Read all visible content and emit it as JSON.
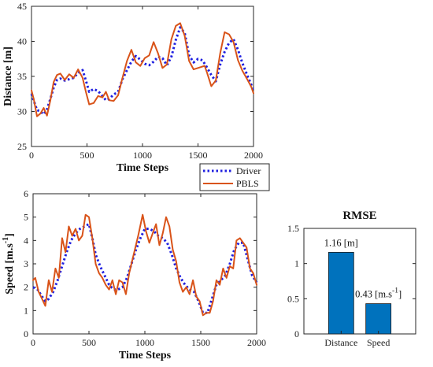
{
  "colors": {
    "driver": "#1f1fe0",
    "pbls": "#d95319",
    "bar": "#0072bd",
    "axis": "#262626"
  },
  "chart_data": [
    {
      "type": "line",
      "xlabel": "Time Steps",
      "ylabel": "Distance [m]",
      "xlim": [
        0,
        2000
      ],
      "ylim": [
        25,
        45
      ],
      "xticks": [
        "0",
        "500",
        "1000",
        "1500",
        "2000"
      ],
      "yticks": [
        "25",
        "30",
        "35",
        "40",
        "45"
      ],
      "series": [
        {
          "name": "Driver",
          "style": "dotted",
          "color": "#1f1fe0",
          "x": [
            0,
            50,
            80,
            110,
            140,
            170,
            200,
            230,
            260,
            300,
            340,
            380,
            420,
            460,
            490,
            520,
            560,
            600,
            640,
            670,
            700,
            740,
            780,
            820,
            860,
            900,
            940,
            980,
            1020,
            1060,
            1100,
            1140,
            1180,
            1220,
            1260,
            1300,
            1340,
            1380,
            1420,
            1460,
            1500,
            1540,
            1560,
            1580,
            1620,
            1660,
            1700,
            1740,
            1780,
            1820,
            1860,
            1900,
            1940,
            1980,
            2000
          ],
          "y": [
            32.5,
            30.2,
            30.0,
            29.6,
            30.3,
            31.8,
            33.4,
            34.5,
            34.7,
            34.4,
            34.6,
            34.8,
            35.5,
            35.9,
            34.4,
            32.8,
            33.2,
            32.9,
            32.2,
            31.6,
            31.8,
            32.4,
            32.8,
            34.6,
            35.9,
            37.1,
            37.9,
            37.4,
            36.8,
            36.6,
            37.1,
            37.8,
            37.6,
            36.6,
            37.8,
            40.2,
            42.0,
            41.2,
            38.0,
            37.0,
            37.5,
            37.3,
            36.8,
            36.3,
            35.2,
            34.3,
            36.7,
            38.5,
            39.8,
            40.3,
            38.8,
            36.9,
            35.3,
            33.8,
            32.9
          ]
        },
        {
          "name": "PBLS",
          "style": "solid",
          "color": "#d95319",
          "x": [
            0,
            20,
            50,
            80,
            110,
            140,
            170,
            200,
            230,
            260,
            300,
            340,
            380,
            420,
            460,
            490,
            520,
            560,
            600,
            640,
            670,
            700,
            740,
            780,
            820,
            860,
            900,
            940,
            980,
            1020,
            1060,
            1100,
            1140,
            1180,
            1220,
            1260,
            1300,
            1340,
            1380,
            1420,
            1460,
            1500,
            1540,
            1560,
            1580,
            1620,
            1660,
            1700,
            1740,
            1780,
            1820,
            1860,
            1900,
            1940,
            1980,
            2000
          ],
          "y": [
            33.0,
            31.8,
            29.3,
            29.7,
            30.5,
            29.4,
            31.6,
            34.2,
            35.2,
            35.4,
            34.5,
            35.3,
            34.8,
            36.0,
            34.8,
            32.8,
            31.0,
            31.2,
            32.2,
            32.0,
            32.8,
            31.6,
            31.5,
            32.3,
            34.8,
            37.2,
            38.8,
            37.0,
            36.5,
            37.6,
            38.0,
            39.9,
            38.3,
            36.2,
            36.7,
            40.3,
            42.2,
            42.6,
            40.8,
            37.2,
            36.0,
            36.2,
            36.4,
            36.5,
            35.6,
            33.6,
            34.4,
            38.3,
            41.3,
            41.0,
            39.9,
            37.3,
            35.8,
            34.7,
            33.5,
            32.6
          ]
        }
      ],
      "legend": {
        "position": "below-right",
        "entries": [
          "Driver",
          "PBLS"
        ]
      }
    },
    {
      "type": "line",
      "xlabel": "Time Steps",
      "ylabel": "Speed [m.s",
      "ylabel_sup": "-1",
      "ylabel_close": "]",
      "xlim": [
        0,
        2000
      ],
      "ylim": [
        0,
        6
      ],
      "xticks": [
        "0",
        "500",
        "1000",
        "1500",
        "2000"
      ],
      "yticks": [
        "0",
        "1",
        "2",
        "3",
        "4",
        "5",
        "6"
      ],
      "series": [
        {
          "name": "Driver",
          "style": "dotted",
          "color": "#1f1fe0",
          "x": [
            0,
            40,
            80,
            110,
            140,
            180,
            220,
            260,
            300,
            340,
            380,
            420,
            460,
            500,
            530,
            560,
            600,
            640,
            680,
            720,
            760,
            800,
            840,
            880,
            920,
            960,
            1000,
            1040,
            1080,
            1120,
            1160,
            1200,
            1240,
            1280,
            1320,
            1360,
            1400,
            1440,
            1480,
            1520,
            1560,
            1600,
            1640,
            1680,
            1720,
            1760,
            1800,
            1840,
            1880,
            1920,
            1960,
            2000
          ],
          "y": [
            2.0,
            1.9,
            1.6,
            1.4,
            1.5,
            1.8,
            2.3,
            2.9,
            3.5,
            4.0,
            4.3,
            4.5,
            4.6,
            4.7,
            4.1,
            3.4,
            2.9,
            2.5,
            2.1,
            1.9,
            1.9,
            2.0,
            2.4,
            3.0,
            3.6,
            4.1,
            4.5,
            4.5,
            4.4,
            4.2,
            4.1,
            3.9,
            3.4,
            2.8,
            2.4,
            2.1,
            1.9,
            1.8,
            1.4,
            0.9,
            0.9,
            1.5,
            2.1,
            2.3,
            2.5,
            3.0,
            3.6,
            3.9,
            3.9,
            3.2,
            2.5,
            2.2
          ]
        },
        {
          "name": "PBLS",
          "style": "solid",
          "color": "#d95319",
          "x": [
            0,
            20,
            50,
            80,
            110,
            140,
            170,
            200,
            230,
            260,
            290,
            320,
            350,
            380,
            410,
            440,
            470,
            500,
            530,
            560,
            590,
            620,
            650,
            680,
            710,
            740,
            770,
            800,
            830,
            860,
            900,
            940,
            980,
            1010,
            1040,
            1070,
            1100,
            1130,
            1160,
            1190,
            1220,
            1250,
            1280,
            1310,
            1340,
            1370,
            1400,
            1430,
            1460,
            1490,
            1520,
            1550,
            1580,
            1610,
            1640,
            1670,
            1700,
            1730,
            1760,
            1790,
            1820,
            1850,
            1880,
            1910,
            1940,
            1970,
            2000
          ],
          "y": [
            2.3,
            2.4,
            1.8,
            1.5,
            1.2,
            2.3,
            1.8,
            2.8,
            2.4,
            4.1,
            3.5,
            4.6,
            4.2,
            4.5,
            4.0,
            4.2,
            5.1,
            5.0,
            4.1,
            3.0,
            2.6,
            2.4,
            2.1,
            1.9,
            2.3,
            1.7,
            2.3,
            2.2,
            1.7,
            2.6,
            3.4,
            4.2,
            5.1,
            4.4,
            3.9,
            4.3,
            4.7,
            3.8,
            4.3,
            5.0,
            4.6,
            3.6,
            3.1,
            2.2,
            1.8,
            2.0,
            1.7,
            2.3,
            1.6,
            1.4,
            0.8,
            0.9,
            0.9,
            1.4,
            2.3,
            2.1,
            2.8,
            2.4,
            2.9,
            2.8,
            4.0,
            4.1,
            3.9,
            3.7,
            2.8,
            2.6,
            2.1
          ]
        }
      ]
    },
    {
      "type": "bar",
      "title": "RMSE",
      "categories": [
        "Distance",
        "Speed"
      ],
      "values": [
        1.16,
        0.43
      ],
      "ylim": [
        0,
        1.5
      ],
      "yticks": [
        "0",
        "0.5",
        "1",
        "1.5"
      ],
      "data_labels": [
        {
          "text": "1.16 [m]",
          "sup": ""
        },
        {
          "text": "0.43 [m.s",
          "sup": "-1",
          "close": "]"
        }
      ]
    }
  ]
}
